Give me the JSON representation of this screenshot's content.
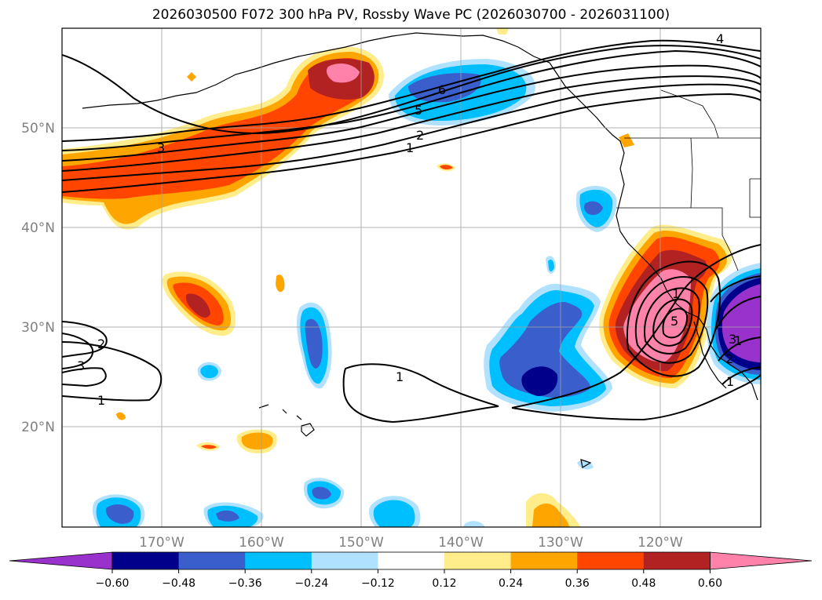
{
  "title": "2026030500 F072 300 hPa PV, Rossby Wave PC (2026030700 - 2026031100)",
  "lat_labels": [
    "50°N",
    "40°N",
    "30°N",
    "20°N"
  ],
  "lon_labels": [
    "170°W",
    "160°W",
    "150°W",
    "140°W",
    "130°W",
    "120°W"
  ],
  "colorbar": {
    "colors": [
      "#9932cc",
      "#00008b",
      "#3a5fcd",
      "#00bfff",
      "#b0e2ff",
      "#ffffff",
      "#ffec8b",
      "#ffa500",
      "#ff4500",
      "#b22222",
      "#ff82ab"
    ],
    "ticks": [
      "−0.60",
      "−0.48",
      "−0.36",
      "−0.24",
      "−0.12",
      "0.12",
      "0.24",
      "0.36",
      "0.48",
      "0.60"
    ]
  },
  "contour_labels": [
    "3",
    "6",
    "5",
    "2",
    "1",
    "2",
    "3",
    "1",
    "1",
    "1",
    "5",
    "4",
    "1",
    "1",
    "2",
    "3"
  ]
}
